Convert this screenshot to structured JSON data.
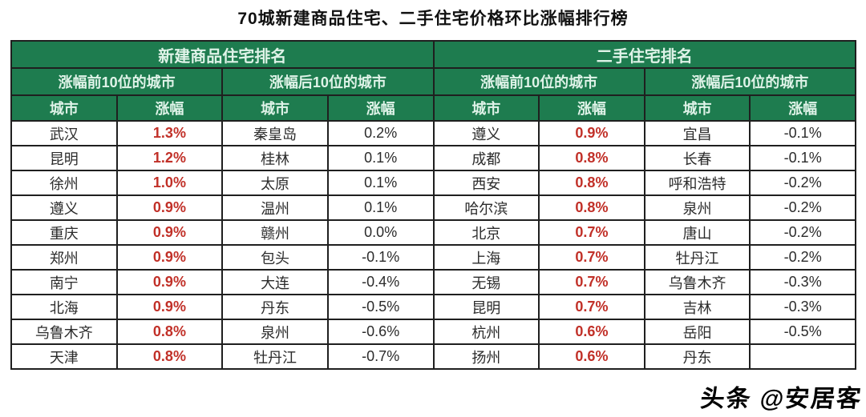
{
  "chart_data": {
    "type": "table",
    "title": "70城新建商品住宅、二手住宅价格环比涨幅排行榜",
    "sections": [
      {
        "title": "新建商品住宅排名",
        "groups": [
          {
            "subtitle": "涨幅前10位的城市",
            "columns": [
              "城市",
              "涨幅"
            ],
            "highlight_values": true,
            "rows": [
              [
                "武汉",
                "1.3%"
              ],
              [
                "昆明",
                "1.2%"
              ],
              [
                "徐州",
                "1.0%"
              ],
              [
                "遵义",
                "0.9%"
              ],
              [
                "重庆",
                "0.9%"
              ],
              [
                "郑州",
                "0.9%"
              ],
              [
                "南宁",
                "0.9%"
              ],
              [
                "北海",
                "0.9%"
              ],
              [
                "乌鲁木齐",
                "0.8%"
              ],
              [
                "天津",
                "0.8%"
              ]
            ]
          },
          {
            "subtitle": "涨幅后10位的城市",
            "columns": [
              "城市",
              "涨幅"
            ],
            "highlight_values": false,
            "rows": [
              [
                "秦皇岛",
                "0.2%"
              ],
              [
                "桂林",
                "0.1%"
              ],
              [
                "太原",
                "0.1%"
              ],
              [
                "温州",
                "0.1%"
              ],
              [
                "赣州",
                "0.0%"
              ],
              [
                "包头",
                "-0.1%"
              ],
              [
                "大连",
                "-0.4%"
              ],
              [
                "丹东",
                "-0.5%"
              ],
              [
                "泉州",
                "-0.6%"
              ],
              [
                "牡丹江",
                "-0.7%"
              ]
            ]
          }
        ]
      },
      {
        "title": "二手住宅排名",
        "groups": [
          {
            "subtitle": "涨幅前10位的城市",
            "columns": [
              "城市",
              "涨幅"
            ],
            "highlight_values": true,
            "rows": [
              [
                "遵义",
                "0.9%"
              ],
              [
                "成都",
                "0.8%"
              ],
              [
                "西安",
                "0.8%"
              ],
              [
                "哈尔滨",
                "0.8%"
              ],
              [
                "北京",
                "0.7%"
              ],
              [
                "上海",
                "0.7%"
              ],
              [
                "无锡",
                "0.7%"
              ],
              [
                "昆明",
                "0.7%"
              ],
              [
                "杭州",
                "0.6%"
              ],
              [
                "扬州",
                "0.6%"
              ]
            ]
          },
          {
            "subtitle": "涨幅后10位的城市",
            "columns": [
              "城市",
              "涨幅"
            ],
            "highlight_values": false,
            "rows": [
              [
                "宜昌",
                "-0.1%"
              ],
              [
                "长春",
                "-0.1%"
              ],
              [
                "呼和浩特",
                "-0.2%"
              ],
              [
                "泉州",
                "-0.2%"
              ],
              [
                "唐山",
                "-0.2%"
              ],
              [
                "牡丹江",
                "-0.2%"
              ],
              [
                "乌鲁木齐",
                "-0.3%"
              ],
              [
                "吉林",
                "-0.3%"
              ],
              [
                "岳阳",
                "-0.5%"
              ],
              [
                "丹东",
                ""
              ]
            ]
          }
        ]
      }
    ]
  },
  "watermark": {
    "text": "头条 @安居客"
  },
  "colors": {
    "header_green": "#1E7C4F",
    "header_text": "#DFF3E8",
    "highlight_red": "#C13028",
    "cell_text": "#2B2B2B",
    "border": "#1F1F1F"
  }
}
